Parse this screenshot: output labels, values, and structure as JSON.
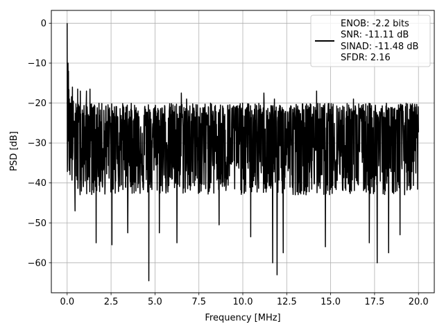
{
  "chart_data": {
    "type": "line",
    "xlabel": "Frequency [MHz]",
    "ylabel": "PSD [dB]",
    "xlim": [
      -0.9,
      20.9
    ],
    "ylim": [
      -67.5,
      3.2
    ],
    "xticks": [
      0.0,
      2.5,
      5.0,
      7.5,
      10.0,
      12.5,
      15.0,
      17.5,
      20.0
    ],
    "xtick_labels": [
      "0.0",
      "2.5",
      "5.0",
      "7.5",
      "10.0",
      "12.5",
      "15.0",
      "17.5",
      "20.0"
    ],
    "yticks": [
      0,
      -10,
      -20,
      -30,
      -40,
      -50,
      -60
    ],
    "ytick_labels": [
      "0",
      "−10",
      "−20",
      "−30",
      "−40",
      "−50",
      "−60"
    ],
    "grid": true,
    "legend_position": "top-right",
    "legend": [
      "ENOB: -2.2 bits",
      "SNR: -11.11 dB",
      "SINAD: -11.48 dB",
      "SFDR: 2.16"
    ],
    "series": [
      {
        "color": "#000000",
        "x_start": 0.0,
        "x_end": 20.0,
        "peak": {
          "x": 0.0,
          "y": 0.0
        },
        "noise_floor_mean_db": -28.5,
        "noise_band_top_db": -20.0,
        "noise_band_bottom_db": -43.0,
        "deep_nulls": [
          {
            "x": 0.15,
            "y": -27.0
          },
          {
            "x": 0.45,
            "y": -47.0
          },
          {
            "x": 1.1,
            "y": -54.5
          },
          {
            "x": 1.65,
            "y": -55.0
          },
          {
            "x": 2.55,
            "y": -55.5
          },
          {
            "x": 3.45,
            "y": -52.5
          },
          {
            "x": 4.65,
            "y": -64.5
          },
          {
            "x": 5.25,
            "y": -52.5
          },
          {
            "x": 6.25,
            "y": -55.0
          },
          {
            "x": 8.65,
            "y": -50.5
          },
          {
            "x": 10.45,
            "y": -53.5
          },
          {
            "x": 11.7,
            "y": -60.0
          },
          {
            "x": 11.95,
            "y": -63.0
          },
          {
            "x": 12.3,
            "y": -57.5
          },
          {
            "x": 14.7,
            "y": -56.0
          },
          {
            "x": 17.2,
            "y": -55.0
          },
          {
            "x": 17.65,
            "y": -60.0
          },
          {
            "x": 18.3,
            "y": -57.5
          },
          {
            "x": 18.95,
            "y": -53.0
          }
        ],
        "tall_spikes": [
          {
            "x": 0.05,
            "y": -10.0
          },
          {
            "x": 0.08,
            "y": -12.0
          },
          {
            "x": 0.3,
            "y": -16.0
          },
          {
            "x": 0.6,
            "y": -16.5
          },
          {
            "x": 0.75,
            "y": -17.0
          },
          {
            "x": 1.1,
            "y": -17.0
          },
          {
            "x": 1.3,
            "y": -16.5
          },
          {
            "x": 6.5,
            "y": -17.5
          },
          {
            "x": 6.8,
            "y": -19.0
          },
          {
            "x": 11.2,
            "y": -17.5
          },
          {
            "x": 11.8,
            "y": -19.0
          },
          {
            "x": 14.2,
            "y": -17.0
          },
          {
            "x": 16.3,
            "y": -19.0
          }
        ]
      }
    ]
  }
}
